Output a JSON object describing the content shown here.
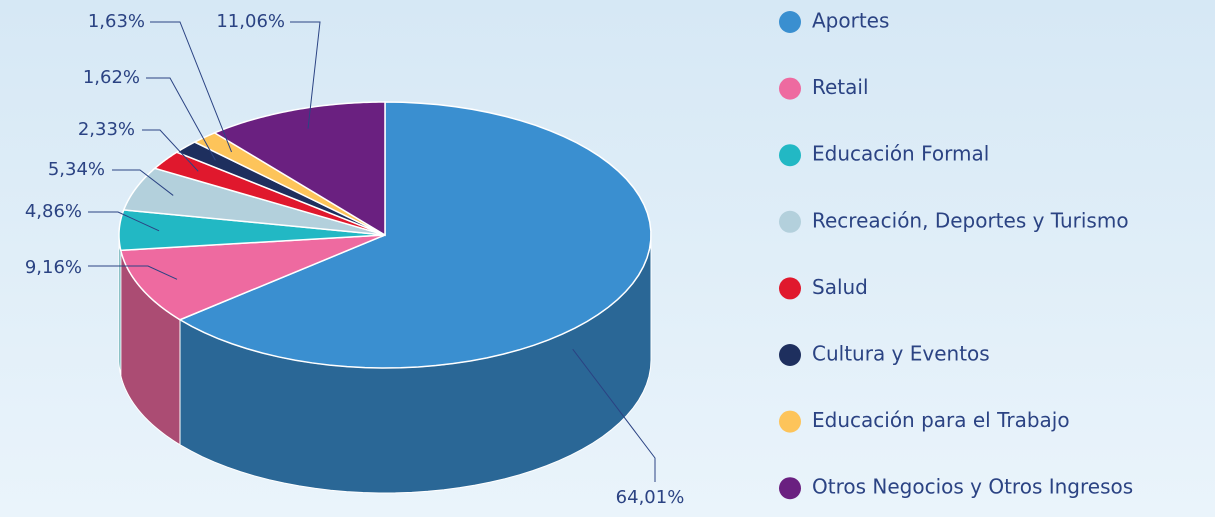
{
  "chart_data": {
    "type": "pie",
    "categories": [
      "Aportes",
      "Retail",
      "Educación Formal",
      "Recreación, Deportes y Turismo",
      "Salud",
      "Cultura y Eventos",
      "Educación para el Trabajo",
      "Otros Negocios y Otros Ingresos"
    ],
    "values": [
      64.01,
      9.16,
      4.86,
      5.34,
      2.33,
      1.62,
      1.63,
      11.06
    ],
    "value_labels": [
      "64,01%",
      "9,16%",
      "4,86%",
      "5,34%",
      "2,33%",
      "1,62%",
      "1,63%",
      "11,06%"
    ],
    "colors": [
      "#3a8fd0",
      "#ee6aa0",
      "#22b8c4",
      "#b3d0dc",
      "#e0182d",
      "#1e2f5e",
      "#fdc45a",
      "#6a2080"
    ]
  }
}
